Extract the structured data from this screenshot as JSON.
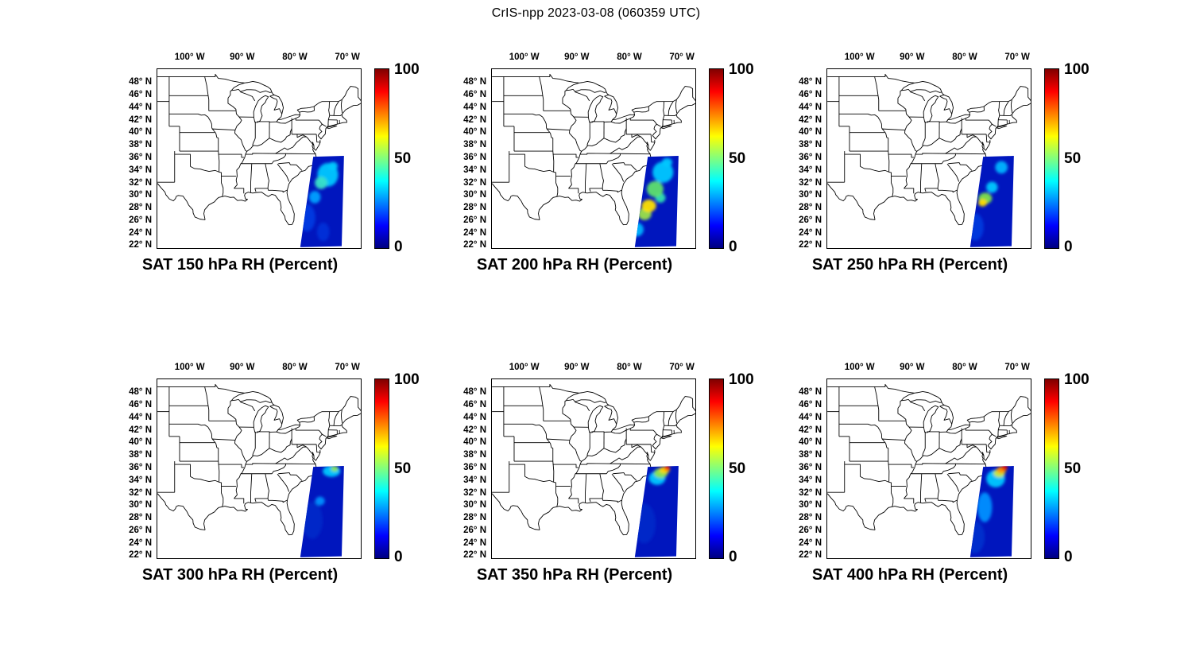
{
  "figure_title": "CrIS-npp 2023-03-08 (060359 UTC)",
  "axes": {
    "lon_ticks": [
      "100° W",
      "90° W",
      "80° W",
      "70° W"
    ],
    "lat_ticks": [
      "48° N",
      "46° N",
      "44° N",
      "42° N",
      "40° N",
      "38° N",
      "36° N",
      "34° N",
      "32° N",
      "30° N",
      "28° N",
      "26° N",
      "24° N",
      "22° N"
    ]
  },
  "colorbar": {
    "ticks": [
      "100",
      "50",
      "0"
    ]
  },
  "chart_data": {
    "type": "heatmap",
    "suptitle": "CrIS-npp 2023-03-08 (060359 UTC)",
    "variable": "SAT Relative Humidity (Percent)",
    "source": "CrIS-npp",
    "colormap": "jet",
    "value_range": [
      0,
      100
    ],
    "colorbar_ticks": [
      0,
      50,
      100
    ],
    "map_extent_lon": [
      -106.3,
      -67.3
    ],
    "map_extent_lat": [
      21.4,
      50.2
    ],
    "lon_ticks_deg_w": [
      100,
      90,
      80,
      70
    ],
    "lat_ticks_deg_n": [
      48,
      46,
      44,
      42,
      40,
      38,
      36,
      34,
      32,
      30,
      28,
      26,
      24,
      22
    ],
    "swath_corners_lonlat": [
      [
        -76.4,
        36.1
      ],
      [
        -70.5,
        36.25
      ],
      [
        -70.95,
        21.7
      ],
      [
        -78.9,
        21.55
      ]
    ],
    "swath_background_color": "#0016be",
    "panels": [
      {
        "title": "SAT 150 hPa RH (Percent)",
        "pressure_hPa": 150,
        "background_rh": 12,
        "features": [
          {
            "lon": -77.6,
            "lat": 26.3,
            "rx": 1.6,
            "ry": 2.2,
            "rh": 18,
            "color": "#0038e0"
          },
          {
            "lon": -74.5,
            "lat": 24.0,
            "rx": 1.2,
            "ry": 1.5,
            "rh": 15,
            "color": "#0030d8"
          },
          {
            "lon": -76.1,
            "lat": 29.6,
            "rx": 1.1,
            "ry": 1.0,
            "rh": 38,
            "color": "#00a0ff"
          },
          {
            "lon": -73.6,
            "lat": 33.2,
            "rx": 2.0,
            "ry": 1.9,
            "rh": 45,
            "color": "#00c8ff"
          },
          {
            "lon": -72.6,
            "lat": 34.6,
            "rx": 0.9,
            "ry": 0.7,
            "rh": 45,
            "color": "#00c8ff"
          },
          {
            "lon": -74.9,
            "lat": 31.9,
            "rx": 1.2,
            "ry": 1.0,
            "rh": 50,
            "color": "#38e0c8"
          }
        ]
      },
      {
        "title": "SAT 200 hPa RH (Percent)",
        "pressure_hPa": 200,
        "background_rh": 15,
        "features": [
          {
            "lon": -78.5,
            "lat": 24.4,
            "rx": 1.3,
            "ry": 1.1,
            "rh": 42,
            "color": "#00b4ff"
          },
          {
            "lon": -73.5,
            "lat": 33.6,
            "rx": 2.0,
            "ry": 1.7,
            "rh": 45,
            "color": "#00c8ff"
          },
          {
            "lon": -72.7,
            "lat": 35.2,
            "rx": 1.0,
            "ry": 0.7,
            "rh": 45,
            "color": "#00c8ff"
          },
          {
            "lon": -74.0,
            "lat": 29.5,
            "rx": 1.0,
            "ry": 0.8,
            "rh": 50,
            "color": "#2ee0b0"
          },
          {
            "lon": -75.0,
            "lat": 30.9,
            "rx": 1.6,
            "ry": 1.3,
            "rh": 55,
            "color": "#5ee06e"
          },
          {
            "lon": -77.0,
            "lat": 26.9,
            "rx": 1.3,
            "ry": 1.0,
            "rh": 58,
            "color": "#9be04a"
          },
          {
            "lon": -76.2,
            "lat": 28.2,
            "rx": 1.4,
            "ry": 1.0,
            "rh": 65,
            "color": "#ffe000"
          }
        ]
      },
      {
        "title": "SAT 250 hPa RH (Percent)",
        "pressure_hPa": 250,
        "background_rh": 12,
        "features": [
          {
            "lon": -77.9,
            "lat": 24.8,
            "rx": 1.6,
            "ry": 2.2,
            "rh": 16,
            "color": "#0038dd"
          },
          {
            "lon": -72.9,
            "lat": 34.4,
            "rx": 1.2,
            "ry": 1.0,
            "rh": 42,
            "color": "#00b4ff"
          },
          {
            "lon": -74.7,
            "lat": 31.2,
            "rx": 1.1,
            "ry": 0.9,
            "rh": 45,
            "color": "#00c8ff"
          },
          {
            "lon": -76.0,
            "lat": 29.4,
            "rx": 1.3,
            "ry": 0.9,
            "rh": 55,
            "color": "#7fe24a"
          },
          {
            "lon": -76.5,
            "lat": 28.7,
            "rx": 0.85,
            "ry": 0.6,
            "rh": 68,
            "color": "#ffdc00"
          }
        ]
      },
      {
        "title": "SAT 300 hPa RH (Percent)",
        "pressure_hPa": 300,
        "background_rh": 10,
        "features": [
          {
            "lon": -76.6,
            "lat": 27.5,
            "rx": 2.0,
            "ry": 3.0,
            "rh": 10,
            "color": "#0028c8"
          },
          {
            "lon": -75.1,
            "lat": 30.6,
            "rx": 0.9,
            "ry": 0.7,
            "rh": 35,
            "color": "#0090ff"
          },
          {
            "lon": -72.9,
            "lat": 35.4,
            "rx": 1.7,
            "ry": 0.9,
            "rh": 45,
            "color": "#00c8ff"
          },
          {
            "lon": -72.3,
            "lat": 35.8,
            "rx": 0.7,
            "ry": 0.45,
            "rh": 55,
            "color": "#8fe84a"
          }
        ]
      },
      {
        "title": "SAT 350 hPa RH (Percent)",
        "pressure_hPa": 350,
        "background_rh": 10,
        "features": [
          {
            "lon": -77.1,
            "lat": 27.0,
            "rx": 2.2,
            "ry": 3.2,
            "rh": 10,
            "color": "#0028c8"
          },
          {
            "lon": -74.6,
            "lat": 34.3,
            "rx": 1.6,
            "ry": 1.1,
            "rh": 45,
            "color": "#00c8ff"
          },
          {
            "lon": -73.9,
            "lat": 35.1,
            "rx": 1.3,
            "ry": 0.8,
            "rh": 55,
            "color": "#8de24a"
          },
          {
            "lon": -73.2,
            "lat": 35.6,
            "rx": 1.0,
            "ry": 0.55,
            "rh": 70,
            "color": "#ffd400"
          },
          {
            "lon": -72.7,
            "lat": 35.9,
            "rx": 0.55,
            "ry": 0.4,
            "rh": 95,
            "color": "#ff2800"
          }
        ]
      },
      {
        "title": "SAT 400 hPa RH (Percent)",
        "pressure_hPa": 400,
        "background_rh": 12,
        "features": [
          {
            "lon": -78.0,
            "lat": 24.8,
            "rx": 1.9,
            "ry": 2.6,
            "rh": 12,
            "color": "#0030cc"
          },
          {
            "lon": -76.1,
            "lat": 29.6,
            "rx": 1.4,
            "ry": 2.4,
            "rh": 35,
            "color": "#0090ff"
          },
          {
            "lon": -74.0,
            "lat": 34.2,
            "rx": 1.8,
            "ry": 1.4,
            "rh": 45,
            "color": "#00c8ff"
          },
          {
            "lon": -73.3,
            "lat": 35.1,
            "rx": 1.1,
            "ry": 0.7,
            "rh": 62,
            "color": "#c8e838"
          },
          {
            "lon": -72.9,
            "lat": 35.6,
            "rx": 0.9,
            "ry": 0.55,
            "rh": 80,
            "color": "#ff9000"
          },
          {
            "lon": -72.3,
            "lat": 36.0,
            "rx": 0.6,
            "ry": 0.45,
            "rh": 95,
            "color": "#e60000"
          }
        ]
      }
    ]
  }
}
